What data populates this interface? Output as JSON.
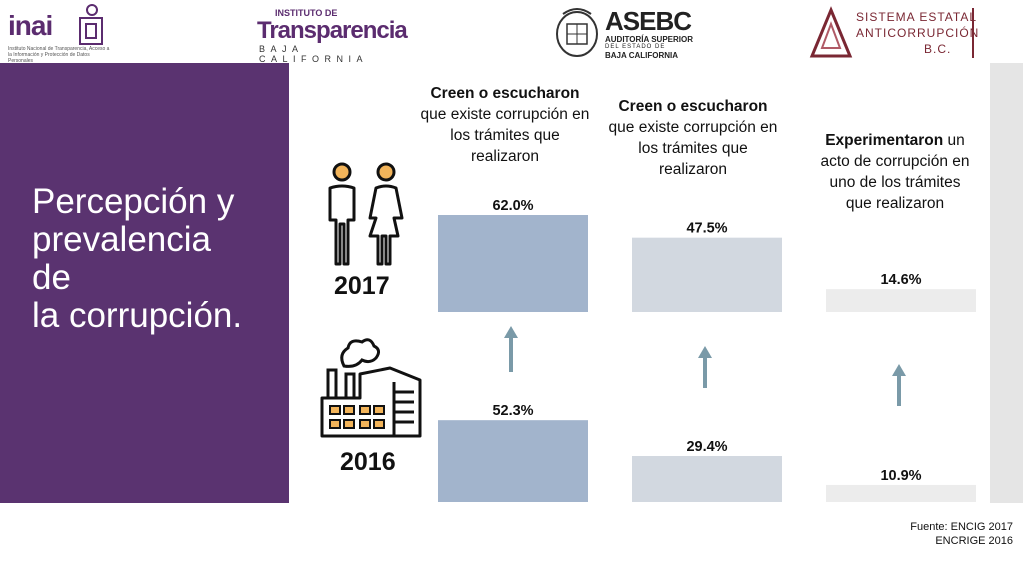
{
  "header": {
    "inai": {
      "wordmark": "inai",
      "subtitle": "Instituto Nacional de Transparencia, Acceso a la Información y Protección de Datos Personales"
    },
    "transparencia": {
      "small": "INSTITUTO DE",
      "name": "Transparencia",
      "sub": "BAJA CALIFORNIA"
    },
    "asebc": {
      "word": "ASEBC",
      "line1": "AUDITORÍA SUPERIOR",
      "line2": "DEL ESTADO DE",
      "line3": "BAJA CALIFORNIA"
    },
    "sea": {
      "line1": "SISTEMA ESTATAL",
      "line2": "ANTICORRUPCIÓN",
      "line3": "B.C."
    }
  },
  "title": {
    "line1": "Percepción y",
    "line2": "prevalencia",
    "line3": "de",
    "line4": "la corrupción."
  },
  "years": {
    "top": "2017",
    "bottom": "2016"
  },
  "columns": [
    {
      "bold": "Creen o escucharon",
      "rest_lines": [
        "que existe corrupción en",
        "los trámites que",
        "realizaron"
      ]
    },
    {
      "bold": "Creen o escucharon",
      "rest_lines": [
        "que existe corrupción en",
        "los trámites que",
        "realizaron"
      ]
    },
    {
      "bold": "Experimentaron",
      "rest_inline": " un",
      "rest_lines": [
        "acto de corrupción en",
        "uno de los trámites",
        "que realizaron"
      ]
    }
  ],
  "chart_data": {
    "type": "bar",
    "categories": [
      "Creen o escucharon (a)",
      "Creen o escucharon (b)",
      "Experimentaron"
    ],
    "series": [
      {
        "name": "2017",
        "values": [
          62.0,
          47.5,
          14.6
        ],
        "labels": [
          "62.0%",
          "47.5%",
          "14.6%"
        ]
      },
      {
        "name": "2016",
        "values": [
          52.3,
          29.4,
          10.9
        ],
        "labels": [
          "52.3%",
          "29.4%",
          "10.9%"
        ]
      }
    ],
    "colors": [
      "#a2b4cc",
      "#d2d8e0",
      "#ececec"
    ],
    "arrow_color": "#7a9aa8",
    "ylim": [
      0,
      62.0
    ]
  },
  "footer": {
    "line1": "Fuente: ENCIG 2017",
    "line2": "ENCRIGE 2016"
  }
}
